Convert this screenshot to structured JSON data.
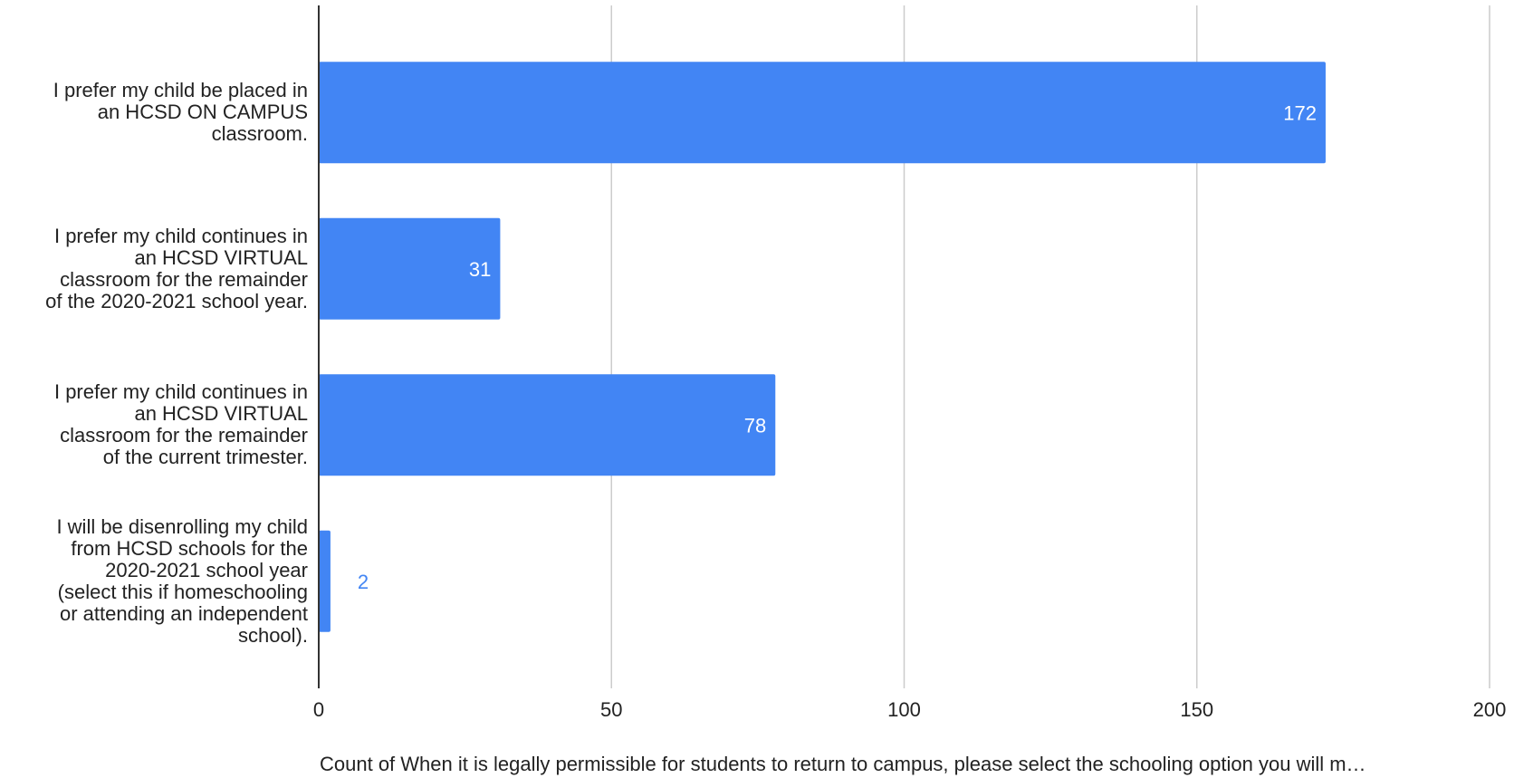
{
  "chart_data": {
    "type": "bar",
    "orientation": "horizontal",
    "categories": [
      [
        "I prefer my child be placed in",
        "an HCSD ON CAMPUS",
        "classroom."
      ],
      [
        "I prefer my child continues in",
        "an HCSD VIRTUAL",
        "classroom for the remainder",
        "of the 2020-2021 school year."
      ],
      [
        "I prefer my child continues in",
        "an HCSD VIRTUAL",
        "classroom for the remainder",
        "of the current trimester."
      ],
      [
        "I will be disenrolling my child",
        "from HCSD schools for the",
        "2020-2021 school year",
        "(select this if homeschooling",
        "or attending an independent",
        "school)."
      ]
    ],
    "values": [
      172,
      31,
      78,
      2
    ],
    "value_labels": [
      "172",
      "31",
      "78",
      "2"
    ],
    "xlim": [
      0,
      200
    ],
    "xticks": [
      0,
      50,
      100,
      150,
      200
    ],
    "xtick_labels": [
      "0",
      "50",
      "100",
      "150",
      "200"
    ],
    "xlabel": "Count of When it is legally permissible for students to return to campus, please select the schooling option you will m…",
    "title": "",
    "grid": true,
    "legend": "none",
    "colors": {
      "bar": "#4285F4",
      "label_inside": "#ffffff",
      "label_outside": "#4285F4",
      "grid": "#cccccc",
      "axis": "#333333",
      "text": "#222222"
    }
  }
}
